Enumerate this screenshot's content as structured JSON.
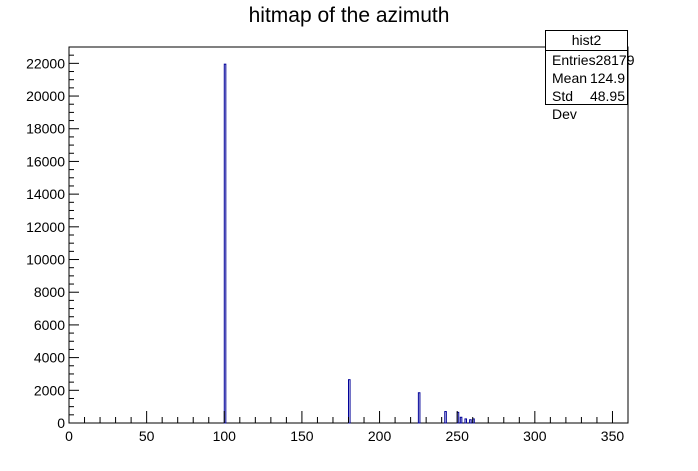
{
  "chart_data": {
    "type": "bar",
    "title": "hitmap of the azimuth",
    "xlabel": "",
    "ylabel": "",
    "xlim": [
      0,
      360
    ],
    "ylim": [
      0,
      23000
    ],
    "grid": false,
    "x_ticks": [
      0,
      50,
      100,
      150,
      200,
      250,
      300,
      350
    ],
    "y_ticks": [
      0,
      2000,
      4000,
      6000,
      8000,
      10000,
      12000,
      14000,
      16000,
      18000,
      20000,
      22000
    ],
    "bin_width": 1,
    "bar_color": "#000099",
    "bins": [
      {
        "x": 100,
        "value": 21950
      },
      {
        "x": 180,
        "value": 2650
      },
      {
        "x": 225,
        "value": 1850
      },
      {
        "x": 242,
        "value": 700
      },
      {
        "x": 250,
        "value": 650
      },
      {
        "x": 252,
        "value": 350
      },
      {
        "x": 255,
        "value": 250
      },
      {
        "x": 258,
        "value": 200
      },
      {
        "x": 260,
        "value": 250
      }
    ]
  },
  "stats_box": {
    "name": "hist2",
    "entries_label": "Entries",
    "entries_value": "28179",
    "mean_label": "Mean",
    "mean_value": "124.9",
    "stddev_label": "Std Dev",
    "stddev_value": "48.95"
  }
}
